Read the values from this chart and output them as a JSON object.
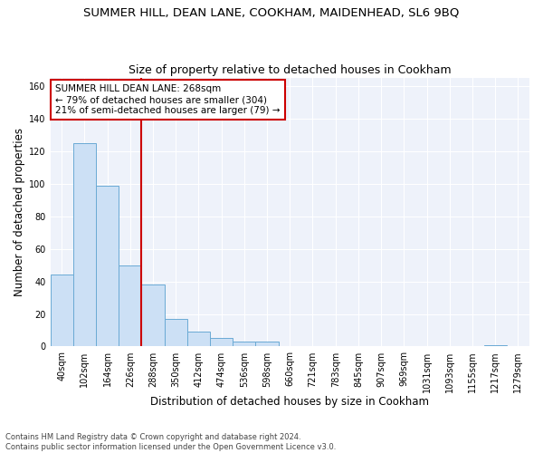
{
  "title1": "SUMMER HILL, DEAN LANE, COOKHAM, MAIDENHEAD, SL6 9BQ",
  "title2": "Size of property relative to detached houses in Cookham",
  "xlabel": "Distribution of detached houses by size in Cookham",
  "ylabel": "Number of detached properties",
  "categories": [
    "40sqm",
    "102sqm",
    "164sqm",
    "226sqm",
    "288sqm",
    "350sqm",
    "412sqm",
    "474sqm",
    "536sqm",
    "598sqm",
    "660sqm",
    "721sqm",
    "783sqm",
    "845sqm",
    "907sqm",
    "969sqm",
    "1031sqm",
    "1093sqm",
    "1155sqm",
    "1217sqm",
    "1279sqm"
  ],
  "values": [
    44,
    125,
    99,
    50,
    38,
    17,
    9,
    5,
    3,
    3,
    0,
    0,
    0,
    0,
    0,
    0,
    0,
    0,
    0,
    1,
    0
  ],
  "bar_color": "#cce0f5",
  "bar_edge_color": "#6aaad4",
  "vline_pos": 3.5,
  "vline_color": "#cc0000",
  "annotation_text": "SUMMER HILL DEAN LANE: 268sqm\n← 79% of detached houses are smaller (304)\n21% of semi-detached houses are larger (79) →",
  "annotation_box_edgecolor": "#cc0000",
  "ylim": [
    0,
    165
  ],
  "yticks": [
    0,
    20,
    40,
    60,
    80,
    100,
    120,
    140,
    160
  ],
  "plot_bg_color": "#eef2fa",
  "grid_color": "#ffffff",
  "footer1": "Contains HM Land Registry data © Crown copyright and database right 2024.",
  "footer2": "Contains public sector information licensed under the Open Government Licence v3.0.",
  "title1_fontsize": 9.5,
  "title2_fontsize": 9,
  "axis_label_fontsize": 8.5,
  "tick_fontsize": 7,
  "annotation_fontsize": 7.5,
  "footer_fontsize": 6
}
